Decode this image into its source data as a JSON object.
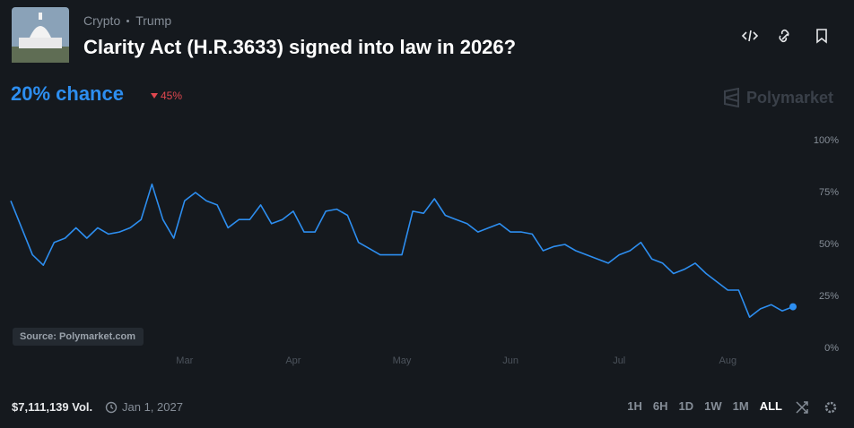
{
  "header": {
    "breadcrumb": [
      "Crypto",
      "Trump"
    ],
    "title": "Clarity Act (H.R.3633) signed into law in 2026?",
    "chance": "20% chance",
    "change": "45%",
    "brand": "Polymarket"
  },
  "footer": {
    "volume": "$7,111,139 Vol.",
    "end_date": "Jan 1, 2027",
    "ranges": [
      "1H",
      "6H",
      "1D",
      "1W",
      "1M",
      "ALL"
    ]
  },
  "chart_data": {
    "type": "line",
    "source": "Source: Polymarket.com",
    "color": "#2d8ef0",
    "categories": [
      null,
      null,
      null,
      null,
      null,
      null,
      null,
      null,
      null,
      null,
      null,
      null,
      null,
      null,
      null,
      null,
      "Mar",
      null,
      null,
      null,
      null,
      null,
      null,
      null,
      null,
      null,
      "Apr",
      null,
      null,
      null,
      null,
      null,
      null,
      null,
      null,
      null,
      "May",
      null,
      null,
      null,
      null,
      null,
      null,
      null,
      null,
      null,
      "Jun",
      null,
      null,
      null,
      null,
      null,
      null,
      null,
      null,
      null,
      "Jul",
      null,
      null,
      null,
      null,
      null,
      null,
      null,
      null,
      null,
      "Aug",
      null,
      null,
      null,
      null,
      null,
      null
    ],
    "values": [
      71,
      58,
      45,
      40,
      51,
      53,
      58,
      53,
      58,
      55,
      56,
      58,
      62,
      79,
      62,
      53,
      71,
      75,
      71,
      69,
      58,
      62,
      62,
      69,
      60,
      62,
      66,
      56,
      56,
      66,
      67,
      64,
      51,
      48,
      45,
      45,
      45,
      66,
      65,
      72,
      64,
      62,
      60,
      56,
      58,
      60,
      56,
      56,
      55,
      47,
      49,
      50,
      47,
      45,
      43,
      41,
      45,
      47,
      51,
      43,
      41,
      36,
      38,
      41,
      36,
      32,
      28,
      28,
      15,
      19,
      21,
      18,
      20
    ],
    "ylim": [
      0,
      100
    ],
    "yticks": [
      {
        "value": 0,
        "label": "0%"
      },
      {
        "value": 25,
        "label": "25%"
      },
      {
        "value": 50,
        "label": "50%"
      },
      {
        "value": 75,
        "label": "75%"
      },
      {
        "value": 100,
        "label": "100%"
      }
    ]
  }
}
